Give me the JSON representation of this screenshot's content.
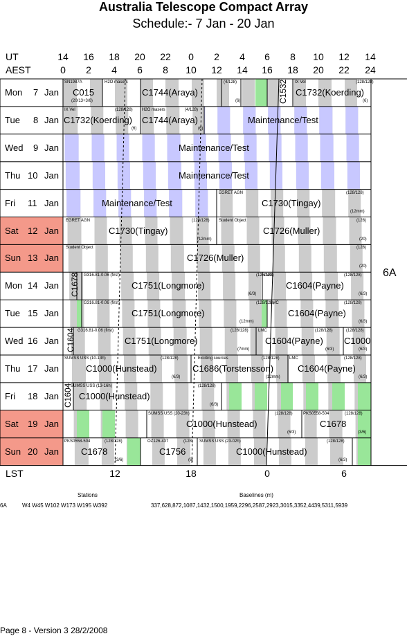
{
  "title": "Australia Telescope Compact Array",
  "subtitle": "Schedule:- 7  Jan - 20 Jan",
  "header": {
    "ut_label": "UT",
    "aest_label": "AEST",
    "ut_ticks": [
      "14",
      "16",
      "18",
      "20",
      "22",
      "0",
      "2",
      "4",
      "6",
      "8",
      "10",
      "12",
      "14"
    ],
    "aest_ticks": [
      "0",
      "2",
      "4",
      "6",
      "8",
      "10",
      "12",
      "14",
      "16",
      "18",
      "20",
      "22",
      "24"
    ]
  },
  "days": [
    {
      "name": "Mon",
      "date": "7",
      "month": "Jan",
      "weekend": false
    },
    {
      "name": "Tue",
      "date": "8",
      "month": "Jan",
      "weekend": false
    },
    {
      "name": "Wed",
      "date": "9",
      "month": "Jan",
      "weekend": false
    },
    {
      "name": "Thu",
      "date": "10",
      "month": "Jan",
      "weekend": false
    },
    {
      "name": "Fri",
      "date": "11",
      "month": "Jan",
      "weekend": false
    },
    {
      "name": "Sat",
      "date": "12",
      "month": "Jan",
      "weekend": true
    },
    {
      "name": "Sun",
      "date": "13",
      "month": "Jan",
      "weekend": true
    },
    {
      "name": "Mon",
      "date": "14",
      "month": "Jan",
      "weekend": false
    },
    {
      "name": "Tue",
      "date": "15",
      "month": "Jan",
      "weekend": false
    },
    {
      "name": "Wed",
      "date": "16",
      "month": "Jan",
      "weekend": false
    },
    {
      "name": "Thu",
      "date": "17",
      "month": "Jan",
      "weekend": false
    },
    {
      "name": "Fri",
      "date": "18",
      "month": "Jan",
      "weekend": false
    },
    {
      "name": "Sat",
      "date": "19",
      "month": "Jan",
      "weekend": true
    },
    {
      "name": "Sun",
      "date": "20",
      "month": "Jan",
      "weekend": true
    }
  ],
  "config": "6A",
  "lst": {
    "label": "LST",
    "ticks": [
      "12",
      "18",
      "0",
      "6"
    ]
  },
  "footer": {
    "stations_label": "Stations",
    "baselines_label": "Baselines (m)",
    "config": "6A",
    "stations": "W4 W45 W102 W173 W195 W392",
    "baselines": "337,628,872,1087,1432,1500,1959,2296,2587,2923,3015,3352,4439,5311,5939",
    "page": "Page 8 - Version 3  28/2/2008"
  },
  "colors": {
    "weekend": "#f4998a",
    "gray": "#cccccc",
    "maint": "#c8c8ff",
    "green": "#99e699"
  },
  "texts": {
    "r0": [
      "SN1987A",
      "(20/13+3/6)",
      "C015",
      "H2O masers",
      "C1744(Araya)",
      "(4/128)",
      "(6)",
      "C1532",
      "IX Vel",
      "(128/128)",
      "C1732(Koerding)",
      "(6)"
    ],
    "r1": [
      "IX Vel",
      "(128/128)",
      "C1732(Koerding)",
      "(6)",
      "H2O masers",
      "(4/128)",
      "C1744(Araya)",
      "(6)",
      "Maintenance/Test"
    ],
    "r2": [
      "Maintenance/Test"
    ],
    "r3": [
      "Maintenance/Test"
    ],
    "r4": [
      "Maintenance/Test",
      "EGRET AGN",
      "(128/128)",
      "C1730(Tingay)",
      "(12mm)"
    ],
    "r5": [
      "EGRET AGN",
      "(128/128)",
      "C1730(Tingay)",
      "(12mm)",
      "Student Object",
      "(128)",
      "C1726(Muller)",
      "(20)"
    ],
    "r6": [
      "Student Object",
      "(128)",
      "C1726(Muller)",
      "(20)"
    ],
    "r7": [
      "C1678",
      "G316.81-0.06 (first)",
      "(128/128)",
      "C1751(Longmore)",
      "(6/3)",
      "LMC",
      "(128/128)",
      "C1604(Payne)",
      "(6/3)"
    ],
    "r8": [
      "G316.81-0.06 (first)",
      "(128/128)",
      "C1751(Longmore)",
      "(12mm)",
      "LMC",
      "(128/128)",
      "C1604(Payne)",
      "(6/3)"
    ],
    "r9": [
      "C1604",
      "G316.81-0.06 (first)",
      "(128/128)",
      "C1751(Longmore)",
      "(7mm)",
      "LMC",
      "(128/128)",
      "C1604(Payne)",
      "(6/3)",
      "(128/128)",
      "C1000",
      "(6/3)"
    ],
    "r10": [
      "SUMSS USS (10-13h)",
      "(128/128)",
      "C1000(Hunstead)",
      "(6/3)",
      "Exciting sources",
      "(128/128)",
      "C1686(Torstensson)",
      "(12mm)",
      "LMC",
      "(128/128)",
      "C1604(Payne)",
      "(6/3)"
    ],
    "r11": [
      "C1604",
      "SUMSS USS (13-16h)",
      "(128/128)",
      "C1000(Hunstead)",
      "(6/3)"
    ],
    "r12": [
      "SUMSS USS (20-23h)",
      "(128/128)",
      "C1000(Hunstead)",
      "(6/3)",
      "PKS0558-504",
      "(128/128)",
      "C1678",
      "(3/6)"
    ],
    "r13": [
      "PKS0558-504",
      "(128/128)",
      "C1678",
      "(3/6)",
      "OZ126-437",
      "(128)",
      "C1756",
      "(6)",
      "SUMSS USS (23-02h)",
      "(128/128)",
      "C1000(Hunstead)",
      "(6/3)"
    ]
  }
}
